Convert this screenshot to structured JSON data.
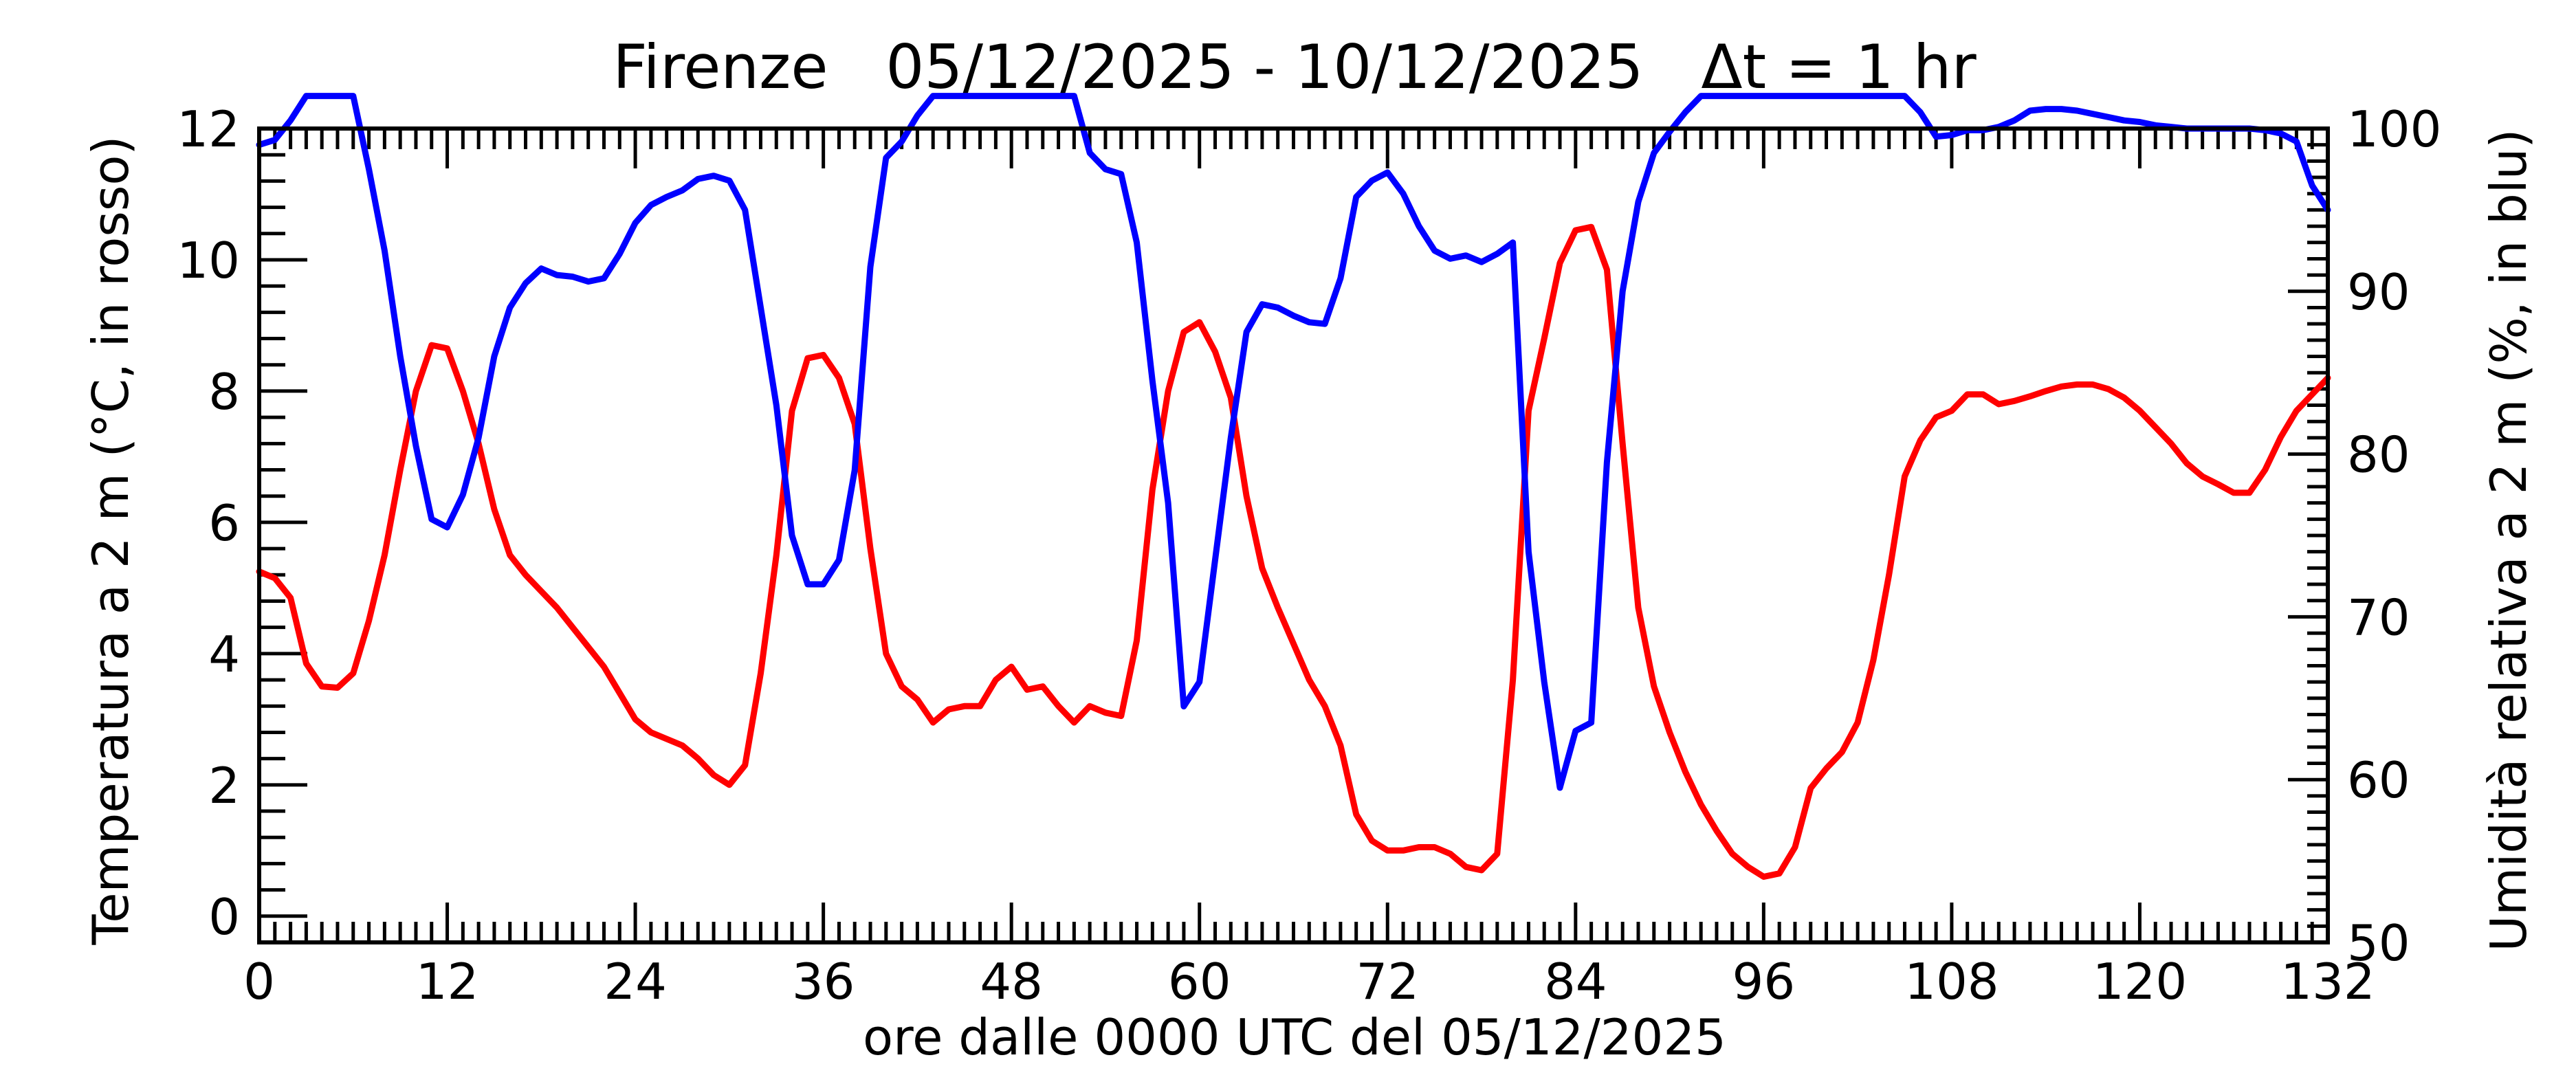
{
  "title": "Firenze   05/12/2025 - 10/12/2025   Δt = 1 hr",
  "chart_data": {
    "type": "line",
    "title": "Firenze   05/12/2025 - 10/12/2025   Δt = 1 hr",
    "xlabel": "ore dalle 0000 UTC del 05/12/2025",
    "ylabel_left": "Temperatura a 2 m (°C, in rosso)",
    "ylabel_right": "Umidità relativa a 2 m (%, in blu)",
    "xlim": [
      0,
      132
    ],
    "ylim_left": [
      -0.4,
      12
    ],
    "ylim_right": [
      50,
      100
    ],
    "x_ticks": [
      "0",
      "12",
      "24",
      "36",
      "48",
      "60",
      "72",
      "84",
      "96",
      "108",
      "120",
      "132"
    ],
    "y_ticks_left": [
      "0",
      "2",
      "4",
      "6",
      "8",
      "10",
      "12"
    ],
    "y_ticks_right": [
      "50",
      "60",
      "70",
      "80",
      "90",
      "100"
    ],
    "grid": false,
    "series": [
      {
        "axis": "left",
        "color": "#ff0000",
        "x": [
          0,
          1,
          2,
          3,
          4,
          5,
          6,
          7,
          8,
          9,
          10,
          11,
          12,
          13,
          14,
          15,
          16,
          17,
          18,
          19,
          20,
          21,
          22,
          23,
          24,
          25,
          26,
          27,
          28,
          29,
          30,
          31,
          32,
          33,
          34,
          35,
          36,
          37,
          38,
          39,
          40,
          41,
          42,
          43,
          44,
          45,
          46,
          47,
          48,
          49,
          50,
          51,
          52,
          53,
          54,
          55,
          56,
          57,
          58,
          59,
          60,
          61,
          62,
          63,
          64,
          65,
          66,
          67,
          68,
          69,
          70,
          71,
          72,
          73,
          74,
          75,
          76,
          77,
          78,
          79,
          80,
          81,
          82,
          83,
          84,
          85,
          86,
          87,
          88,
          89,
          90,
          91,
          92,
          93,
          94,
          95,
          96,
          97,
          98,
          99,
          100,
          101,
          102,
          103,
          104,
          105,
          106,
          107,
          108,
          109,
          110,
          111,
          112,
          113,
          114,
          115,
          116,
          117,
          118,
          119,
          120,
          121,
          122,
          123,
          124,
          125,
          126,
          127,
          128,
          129,
          130,
          131,
          132
        ],
        "values": [
          5.25,
          5.15,
          4.85,
          3.85,
          3.5,
          3.48,
          3.7,
          4.5,
          5.5,
          6.8,
          8.0,
          8.7,
          8.65,
          8.0,
          7.2,
          6.2,
          5.5,
          5.2,
          4.95,
          4.7,
          4.4,
          4.1,
          3.8,
          3.4,
          3.0,
          2.8,
          2.7,
          2.6,
          2.4,
          2.15,
          2.0,
          2.3,
          3.7,
          5.5,
          7.7,
          8.5,
          8.55,
          8.2,
          7.5,
          5.6,
          4.0,
          3.5,
          3.3,
          2.95,
          3.15,
          3.2,
          3.2,
          3.6,
          3.8,
          3.45,
          3.5,
          3.2,
          2.95,
          3.2,
          3.1,
          3.05,
          4.2,
          6.5,
          8.0,
          8.9,
          9.05,
          8.6,
          7.9,
          6.4,
          5.3,
          4.7,
          4.15,
          3.6,
          3.2,
          2.6,
          1.55,
          1.15,
          1.0,
          1.0,
          1.05,
          1.05,
          0.95,
          0.75,
          0.7,
          0.95,
          3.6,
          7.7,
          8.8,
          9.95,
          10.45,
          10.5,
          9.85,
          7.2,
          4.7,
          3.5,
          2.8,
          2.2,
          1.7,
          1.3,
          0.95,
          0.75,
          0.6,
          0.65,
          1.05,
          1.95,
          2.25,
          2.5,
          2.95,
          3.9,
          5.2,
          6.7,
          7.25,
          7.6,
          7.7,
          7.95,
          7.95,
          7.8,
          7.85,
          7.92,
          8.0,
          8.07,
          8.1,
          8.1,
          8.03,
          7.9,
          7.7,
          7.45,
          7.2,
          6.9,
          6.7,
          6.58,
          6.45,
          6.45,
          6.8,
          7.3,
          7.7,
          7.95,
          8.2
        ]
      },
      {
        "axis": "right",
        "color": "#0000ff",
        "x": [
          0,
          1,
          2,
          3,
          4,
          5,
          6,
          7,
          8,
          9,
          10,
          11,
          12,
          13,
          14,
          15,
          16,
          17,
          18,
          19,
          20,
          21,
          22,
          23,
          24,
          25,
          26,
          27,
          28,
          29,
          30,
          31,
          32,
          33,
          34,
          35,
          36,
          37,
          38,
          39,
          40,
          41,
          42,
          43,
          44,
          45,
          46,
          47,
          48,
          49,
          50,
          51,
          52,
          53,
          54,
          55,
          56,
          57,
          58,
          59,
          60,
          61,
          62,
          63,
          64,
          65,
          66,
          67,
          68,
          69,
          70,
          71,
          72,
          73,
          74,
          75,
          76,
          77,
          78,
          79,
          80,
          81,
          82,
          83,
          84,
          85,
          86,
          87,
          88,
          89,
          90,
          91,
          92,
          93,
          94,
          95,
          96,
          97,
          98,
          99,
          100,
          101,
          102,
          103,
          104,
          105,
          106,
          107,
          108,
          109,
          110,
          111,
          112,
          113,
          114,
          115,
          116,
          117,
          118,
          119,
          120,
          121,
          122,
          123,
          124,
          125,
          126,
          127,
          128,
          129,
          130,
          131,
          132
        ],
        "values": [
          99.0,
          99.3,
          100.5,
          102.0,
          102.0,
          102.0,
          102.0,
          97.5,
          92.5,
          86.0,
          80.5,
          76.0,
          75.5,
          77.5,
          81.0,
          86.0,
          89.0,
          90.5,
          91.4,
          91.0,
          90.9,
          90.6,
          90.8,
          92.3,
          94.2,
          95.3,
          95.8,
          96.2,
          96.9,
          97.1,
          96.8,
          95.0,
          89.0,
          83.0,
          75.0,
          72.0,
          72.0,
          73.5,
          79.0,
          91.5,
          98.2,
          99.2,
          100.8,
          102.0,
          102.0,
          102.0,
          102.0,
          102.0,
          102.0,
          102.0,
          102.0,
          102.0,
          102.0,
          98.5,
          97.5,
          97.2,
          93.0,
          84.5,
          77.0,
          64.5,
          66.0,
          73.5,
          81.0,
          87.5,
          89.2,
          89.0,
          88.5,
          88.1,
          88.0,
          90.8,
          95.8,
          96.8,
          97.3,
          96.0,
          94.0,
          92.5,
          92.0,
          92.2,
          91.8,
          92.3,
          93.0,
          74.0,
          66.0,
          59.5,
          63.0,
          63.5,
          79.5,
          90.0,
          95.5,
          98.5,
          99.8,
          101.0,
          102.0,
          102.0,
          102.0,
          102.0,
          102.0,
          102.0,
          102.0,
          102.0,
          102.0,
          102.0,
          102.0,
          102.0,
          102.0,
          102.0,
          101.0,
          99.5,
          99.6,
          99.9,
          99.9,
          100.1,
          100.5,
          101.1,
          101.2,
          101.2,
          101.1,
          100.9,
          100.7,
          100.5,
          100.4,
          100.2,
          100.1,
          100.0,
          100.0,
          100.0,
          100.0,
          100.0,
          99.9,
          99.7,
          99.2,
          96.5,
          95.0
        ]
      }
    ]
  }
}
